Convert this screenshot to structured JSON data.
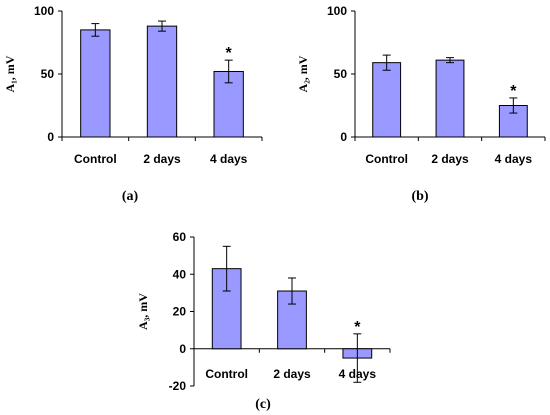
{
  "chart_data": [
    {
      "type": "bar",
      "panel_label": "(a)",
      "ylabel": "A₁, mV",
      "categories": [
        "Control",
        "2 days",
        "4 days"
      ],
      "values": [
        85,
        88,
        52
      ],
      "errors": [
        5,
        4,
        9
      ],
      "significance": [
        "",
        "",
        "*"
      ],
      "ylim": [
        0,
        100
      ],
      "yticks": [
        0,
        50,
        100
      ],
      "bar_color": "#9999ff",
      "grid": false
    },
    {
      "type": "bar",
      "panel_label": "(b)",
      "ylabel": "A₂, mV",
      "categories": [
        "Control",
        "2 days",
        "4 days"
      ],
      "values": [
        59,
        61,
        25
      ],
      "errors": [
        6,
        2,
        6
      ],
      "significance": [
        "",
        "",
        "*"
      ],
      "ylim": [
        0,
        100
      ],
      "yticks": [
        0,
        50,
        100
      ],
      "bar_color": "#9999ff",
      "grid": false
    },
    {
      "type": "bar",
      "panel_label": "(c)",
      "ylabel": "A₃, mV",
      "categories": [
        "Control",
        "2 days",
        "4 days"
      ],
      "values": [
        43,
        31,
        -5
      ],
      "errors": [
        12,
        7,
        13
      ],
      "significance": [
        "",
        "",
        "*"
      ],
      "ylim": [
        -20,
        60
      ],
      "yticks": [
        -20,
        0,
        20,
        40,
        60
      ],
      "bar_color": "#9999ff",
      "grid": false
    }
  ]
}
